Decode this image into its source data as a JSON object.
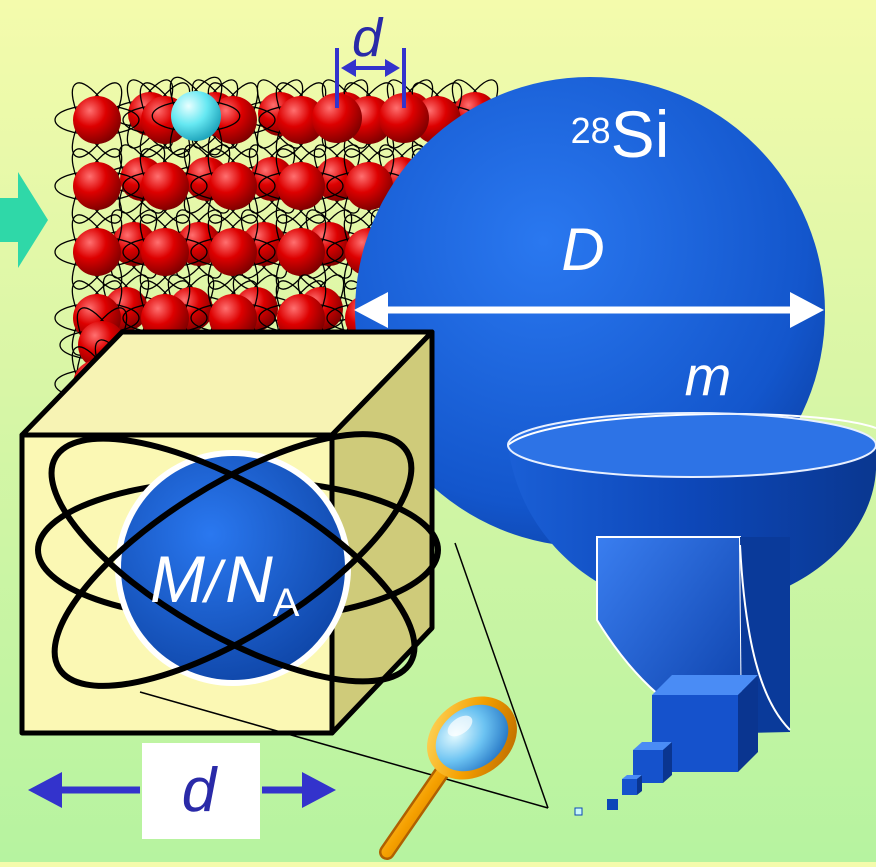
{
  "labels": {
    "lattice_spacing": "d",
    "isotope_mass_number": "28",
    "isotope_symbol": "Si",
    "sphere_diameter": "D",
    "sphere_mass": "m",
    "molar_mass_symbol": "M",
    "slash": "/",
    "avogadro_symbol": "N",
    "avogadro_subscript": "A",
    "cube_edge": "d"
  },
  "colors": {
    "atom_red": "#cc0000",
    "highlight_atom": "#66e8f2",
    "sphere_blue": "#1155cc",
    "dimension_arrow": "#3333cc",
    "input_arrow": "#2fd8a8",
    "cube_face": "#fbf8b4",
    "magnifier_handle": "#f5a000"
  },
  "icons": [
    "right-arrow-icon",
    "magnifier-icon"
  ]
}
